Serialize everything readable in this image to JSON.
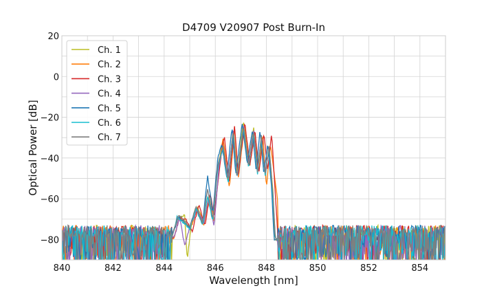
{
  "chart_data": {
    "type": "line",
    "title": "D4709 V20907 Post Burn-In",
    "xlabel": "Wavelength [nm]",
    "ylabel": "Optical Power [dB]",
    "xlim": [
      840,
      855
    ],
    "ylim": [
      -90,
      20
    ],
    "xticks": [
      840,
      842,
      844,
      846,
      848,
      850,
      852,
      854
    ],
    "yticks": [
      20,
      0,
      -20,
      -40,
      -60,
      -80
    ],
    "grid": true,
    "legend_position": "top-left",
    "noise_floor_db": -78,
    "series": [
      {
        "name": "Ch. 1",
        "color": "#bcbd22",
        "points": [
          [
            840,
            -80
          ],
          [
            844.3,
            -79
          ],
          [
            844.5,
            -70
          ],
          [
            844.8,
            -68
          ],
          [
            844.9,
            -90
          ],
          [
            845.05,
            -74
          ],
          [
            845.3,
            -64
          ],
          [
            845.55,
            -72
          ],
          [
            845.75,
            -58
          ],
          [
            845.9,
            -70
          ],
          [
            846.1,
            -44
          ],
          [
            846.3,
            -31
          ],
          [
            846.5,
            -52
          ],
          [
            846.7,
            -25
          ],
          [
            846.85,
            -48
          ],
          [
            847.1,
            -22
          ],
          [
            847.3,
            -42
          ],
          [
            847.5,
            -25
          ],
          [
            847.65,
            -45
          ],
          [
            847.8,
            -30
          ],
          [
            847.95,
            -48
          ],
          [
            848.1,
            -34
          ],
          [
            848.25,
            -56
          ],
          [
            848.3,
            -80
          ],
          [
            855,
            -80
          ]
        ]
      },
      {
        "name": "Ch. 2",
        "color": "#ff7f0e",
        "points": [
          [
            840,
            -80
          ],
          [
            844.4,
            -79
          ],
          [
            844.6,
            -69
          ],
          [
            844.8,
            -72
          ],
          [
            845.05,
            -74
          ],
          [
            845.3,
            -65
          ],
          [
            845.55,
            -73
          ],
          [
            845.8,
            -57
          ],
          [
            845.95,
            -72
          ],
          [
            846.15,
            -45
          ],
          [
            846.3,
            -30
          ],
          [
            846.55,
            -55
          ],
          [
            846.75,
            -25
          ],
          [
            846.9,
            -50
          ],
          [
            847.15,
            -23
          ],
          [
            847.35,
            -44
          ],
          [
            847.55,
            -27
          ],
          [
            847.7,
            -47
          ],
          [
            847.85,
            -28
          ],
          [
            848.0,
            -55
          ],
          [
            848.15,
            -33
          ],
          [
            848.3,
            -47
          ],
          [
            848.45,
            -62
          ],
          [
            848.55,
            -80
          ],
          [
            855,
            -80
          ]
        ]
      },
      {
        "name": "Ch. 3",
        "color": "#d62728",
        "points": [
          [
            840,
            -80
          ],
          [
            844.4,
            -79
          ],
          [
            844.6,
            -69
          ],
          [
            844.85,
            -70
          ],
          [
            845.1,
            -76
          ],
          [
            845.35,
            -63
          ],
          [
            845.6,
            -73
          ],
          [
            845.8,
            -57
          ],
          [
            845.95,
            -69
          ],
          [
            846.2,
            -41
          ],
          [
            846.35,
            -29
          ],
          [
            846.55,
            -52
          ],
          [
            846.75,
            -24
          ],
          [
            846.9,
            -48
          ],
          [
            847.15,
            -22
          ],
          [
            847.35,
            -44
          ],
          [
            847.55,
            -26
          ],
          [
            847.7,
            -47
          ],
          [
            847.9,
            -28
          ],
          [
            848.05,
            -46
          ],
          [
            848.2,
            -28
          ],
          [
            848.35,
            -58
          ],
          [
            848.45,
            -80
          ],
          [
            855,
            -80
          ]
        ]
      },
      {
        "name": "Ch. 4",
        "color": "#9467bd",
        "points": [
          [
            840,
            -80
          ],
          [
            844.4,
            -79
          ],
          [
            844.6,
            -69
          ],
          [
            844.8,
            -83
          ],
          [
            845.0,
            -74
          ],
          [
            845.3,
            -65
          ],
          [
            845.55,
            -72
          ],
          [
            845.75,
            -59
          ],
          [
            845.95,
            -74
          ],
          [
            846.15,
            -43
          ],
          [
            846.3,
            -34
          ],
          [
            846.5,
            -50
          ],
          [
            846.7,
            -26
          ],
          [
            846.85,
            -50
          ],
          [
            847.1,
            -24
          ],
          [
            847.3,
            -43
          ],
          [
            847.5,
            -26
          ],
          [
            847.65,
            -46
          ],
          [
            847.8,
            -30
          ],
          [
            847.95,
            -47
          ],
          [
            848.1,
            -35
          ],
          [
            848.25,
            -58
          ],
          [
            848.35,
            -80
          ],
          [
            855,
            -80
          ]
        ]
      },
      {
        "name": "Ch. 5",
        "color": "#1f77b4",
        "points": [
          [
            840,
            -80
          ],
          [
            844.3,
            -79
          ],
          [
            844.55,
            -69
          ],
          [
            844.8,
            -72
          ],
          [
            845.0,
            -74
          ],
          [
            845.25,
            -64
          ],
          [
            845.5,
            -72
          ],
          [
            845.7,
            -49
          ],
          [
            845.9,
            -67
          ],
          [
            846.1,
            -40
          ],
          [
            846.25,
            -33
          ],
          [
            846.45,
            -50
          ],
          [
            846.65,
            -25
          ],
          [
            846.8,
            -48
          ],
          [
            847.05,
            -23
          ],
          [
            847.25,
            -43
          ],
          [
            847.45,
            -26
          ],
          [
            847.6,
            -47
          ],
          [
            847.75,
            -26
          ],
          [
            847.9,
            -48
          ],
          [
            848.05,
            -33
          ],
          [
            848.2,
            -55
          ],
          [
            848.3,
            -80
          ],
          [
            855,
            -80
          ]
        ]
      },
      {
        "name": "Ch. 6",
        "color": "#17becf",
        "points": [
          [
            840,
            -80
          ],
          [
            844.3,
            -79
          ],
          [
            844.5,
            -69
          ],
          [
            844.8,
            -72
          ],
          [
            845.0,
            -75
          ],
          [
            845.25,
            -65
          ],
          [
            845.5,
            -73
          ],
          [
            845.7,
            -59
          ],
          [
            845.9,
            -71
          ],
          [
            846.1,
            -45
          ],
          [
            846.3,
            -35
          ],
          [
            846.5,
            -53
          ],
          [
            846.7,
            -27
          ],
          [
            846.85,
            -50
          ],
          [
            847.1,
            -25
          ],
          [
            847.3,
            -45
          ],
          [
            847.5,
            -28
          ],
          [
            847.65,
            -48
          ],
          [
            847.8,
            -31
          ],
          [
            847.95,
            -49
          ],
          [
            848.1,
            -35
          ],
          [
            848.25,
            -60
          ],
          [
            848.35,
            -80
          ],
          [
            855,
            -80
          ]
        ]
      },
      {
        "name": "Ch. 7",
        "color": "#7f7f7f",
        "points": [
          [
            840,
            -80
          ],
          [
            844.3,
            -79
          ],
          [
            844.55,
            -68
          ],
          [
            844.8,
            -71
          ],
          [
            845.0,
            -74
          ],
          [
            845.25,
            -64
          ],
          [
            845.5,
            -72
          ],
          [
            845.7,
            -55
          ],
          [
            845.9,
            -70
          ],
          [
            846.1,
            -43
          ],
          [
            846.3,
            -34
          ],
          [
            846.5,
            -51
          ],
          [
            846.7,
            -26
          ],
          [
            846.85,
            -49
          ],
          [
            847.1,
            -24
          ],
          [
            847.3,
            -44
          ],
          [
            847.5,
            -27
          ],
          [
            847.65,
            -47
          ],
          [
            847.8,
            -29
          ],
          [
            847.95,
            -48
          ],
          [
            848.1,
            -34
          ],
          [
            848.25,
            -57
          ],
          [
            848.35,
            -80
          ],
          [
            855,
            -80
          ]
        ]
      }
    ]
  }
}
